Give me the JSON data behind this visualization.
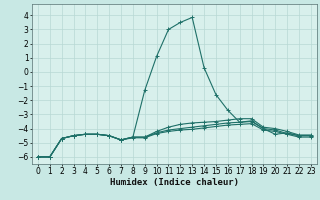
{
  "xlabel": "Humidex (Indice chaleur)",
  "xlim": [
    -0.5,
    23.5
  ],
  "ylim": [
    -6.5,
    4.8
  ],
  "yticks": [
    -6,
    -5,
    -4,
    -3,
    -2,
    -1,
    0,
    1,
    2,
    3,
    4
  ],
  "xticks": [
    0,
    1,
    2,
    3,
    4,
    5,
    6,
    7,
    8,
    9,
    10,
    11,
    12,
    13,
    14,
    15,
    16,
    17,
    18,
    19,
    20,
    21,
    22,
    23
  ],
  "background_color": "#c8e8e4",
  "plot_bg_color": "#d8f0ec",
  "grid_color": "#b8d8d4",
  "line_color": "#1e7068",
  "lines": [
    {
      "x": [
        0,
        1,
        2,
        3,
        4,
        5,
        6,
        7,
        8,
        9,
        10,
        11,
        12,
        13,
        14,
        15,
        16,
        17,
        18,
        19,
        20,
        21,
        22,
        23
      ],
      "y": [
        -6.0,
        -6.0,
        -4.7,
        -4.5,
        -4.4,
        -4.4,
        -4.5,
        -4.8,
        -4.6,
        -1.3,
        1.1,
        3.0,
        3.5,
        3.85,
        0.3,
        -1.6,
        -2.7,
        -3.55,
        -3.45,
        -4.0,
        -4.4,
        -4.3,
        -4.5,
        -4.5
      ]
    },
    {
      "x": [
        0,
        1,
        2,
        3,
        4,
        5,
        6,
        7,
        8,
        9,
        10,
        11,
        12,
        13,
        14,
        15,
        16,
        17,
        18,
        19,
        20,
        21,
        22,
        23
      ],
      "y": [
        -6.0,
        -6.0,
        -4.7,
        -4.5,
        -4.4,
        -4.4,
        -4.5,
        -4.8,
        -4.6,
        -4.6,
        -4.2,
        -3.9,
        -3.7,
        -3.6,
        -3.55,
        -3.5,
        -3.4,
        -3.3,
        -3.3,
        -3.9,
        -4.0,
        -4.2,
        -4.45,
        -4.45
      ]
    },
    {
      "x": [
        0,
        1,
        2,
        3,
        4,
        5,
        6,
        7,
        8,
        9,
        10,
        11,
        12,
        13,
        14,
        15,
        16,
        17,
        18,
        19,
        20,
        21,
        22,
        23
      ],
      "y": [
        -6.0,
        -6.0,
        -4.7,
        -4.5,
        -4.4,
        -4.4,
        -4.5,
        -4.8,
        -4.6,
        -4.6,
        -4.3,
        -4.1,
        -4.0,
        -3.9,
        -3.8,
        -3.7,
        -3.6,
        -3.55,
        -3.5,
        -4.0,
        -4.1,
        -4.35,
        -4.5,
        -4.5
      ]
    },
    {
      "x": [
        0,
        1,
        2,
        3,
        4,
        5,
        6,
        7,
        8,
        9,
        10,
        11,
        12,
        13,
        14,
        15,
        16,
        17,
        18,
        19,
        20,
        21,
        22,
        23
      ],
      "y": [
        -6.0,
        -6.0,
        -4.7,
        -4.5,
        -4.4,
        -4.4,
        -4.5,
        -4.8,
        -4.65,
        -4.65,
        -4.35,
        -4.2,
        -4.1,
        -4.05,
        -3.95,
        -3.85,
        -3.75,
        -3.7,
        -3.65,
        -4.1,
        -4.2,
        -4.4,
        -4.6,
        -4.6
      ]
    }
  ],
  "marker": "+",
  "marker_size": 3,
  "line_width": 0.8,
  "font_size_label": 6.5,
  "font_size_tick": 5.5
}
